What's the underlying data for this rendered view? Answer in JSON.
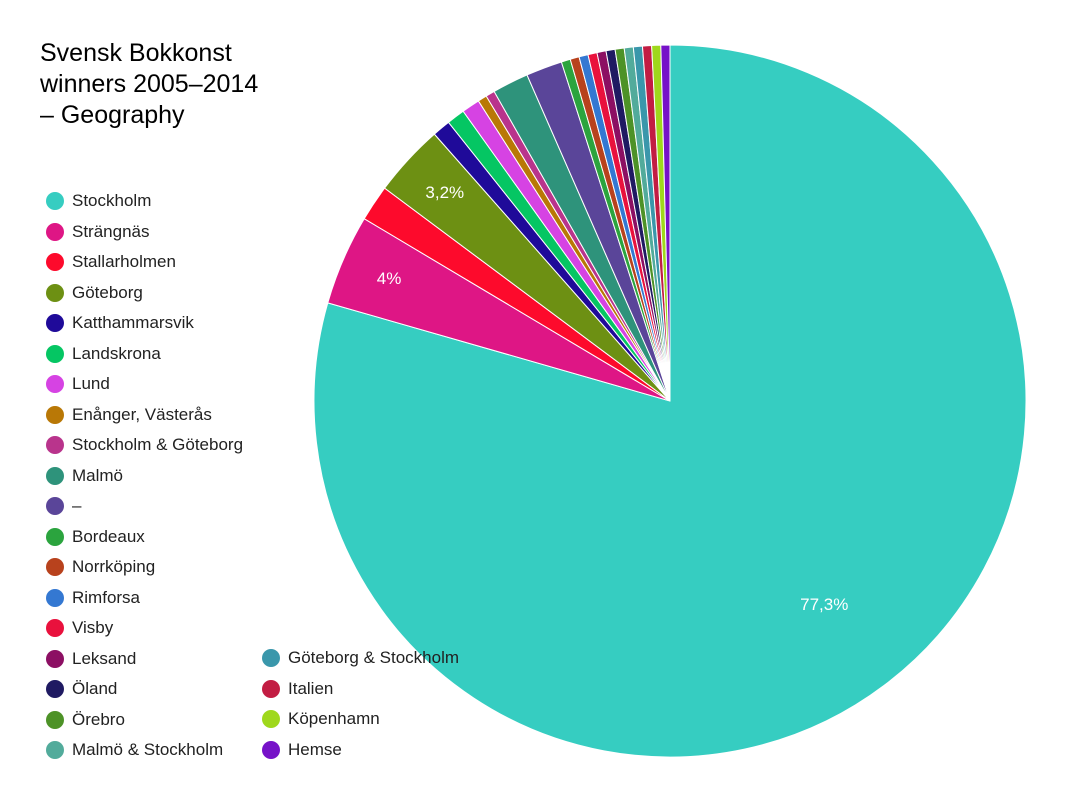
{
  "chart_data": {
    "type": "pie",
    "title": "Svensk Bokkonst\nwinners 2005–2014\n– Geography",
    "slices": [
      {
        "label": "Stockholm",
        "value": 77.3,
        "color": "#36cdc1",
        "data_label": "77,3%"
      },
      {
        "label": "Strängnäs",
        "value": 4.0,
        "color": "#de1685",
        "data_label": "4%"
      },
      {
        "label": "Stallarholmen",
        "value": 1.6,
        "color": "#fd0a2c",
        "data_label": ""
      },
      {
        "label": "Göteborg",
        "value": 3.2,
        "color": "#6d9013",
        "data_label": "3,2%"
      },
      {
        "label": "Katthammarsvik",
        "value": 0.8,
        "color": "#1f0a99",
        "data_label": ""
      },
      {
        "label": "Landskrona",
        "value": 0.8,
        "color": "#05c663",
        "data_label": ""
      },
      {
        "label": "Lund",
        "value": 0.8,
        "color": "#d643e3",
        "data_label": ""
      },
      {
        "label": "Enånger, Västerås",
        "value": 0.4,
        "color": "#b97806",
        "data_label": ""
      },
      {
        "label": "Stockholm & Göteborg",
        "value": 0.4,
        "color": "#b9348c",
        "data_label": ""
      },
      {
        "label": "Malmö",
        "value": 1.6,
        "color": "#2e937b",
        "data_label": ""
      },
      {
        "label": "–",
        "value": 1.6,
        "color": "#5a4599",
        "data_label": ""
      },
      {
        "label": "Bordeaux",
        "value": 0.4,
        "color": "#2ba43e",
        "data_label": ""
      },
      {
        "label": "Norrköping",
        "value": 0.4,
        "color": "#b8421d",
        "data_label": ""
      },
      {
        "label": "Rimforsa",
        "value": 0.4,
        "color": "#3478d2",
        "data_label": ""
      },
      {
        "label": "Visby",
        "value": 0.4,
        "color": "#e9113d",
        "data_label": ""
      },
      {
        "label": "Leksand",
        "value": 0.4,
        "color": "#8c0f63",
        "data_label": ""
      },
      {
        "label": "Öland",
        "value": 0.4,
        "color": "#1f1a62",
        "data_label": ""
      },
      {
        "label": "Örebro",
        "value": 0.4,
        "color": "#4d9227",
        "data_label": ""
      },
      {
        "label": "Malmö & Stockholm",
        "value": 0.4,
        "color": "#52ab9b",
        "data_label": ""
      },
      {
        "label": "Göteborg & Stockholm",
        "value": 0.4,
        "color": "#3a97ab",
        "data_label": ""
      },
      {
        "label": "Italien",
        "value": 0.4,
        "color": "#c21d43",
        "data_label": ""
      },
      {
        "label": "Köpenhamn",
        "value": 0.4,
        "color": "#9fd81c",
        "data_label": ""
      },
      {
        "label": "Hemse",
        "value": 0.4,
        "color": "#7612c8",
        "data_label": ""
      }
    ],
    "legend_position": "left",
    "start_angle": "top",
    "direction": "clockwise"
  }
}
